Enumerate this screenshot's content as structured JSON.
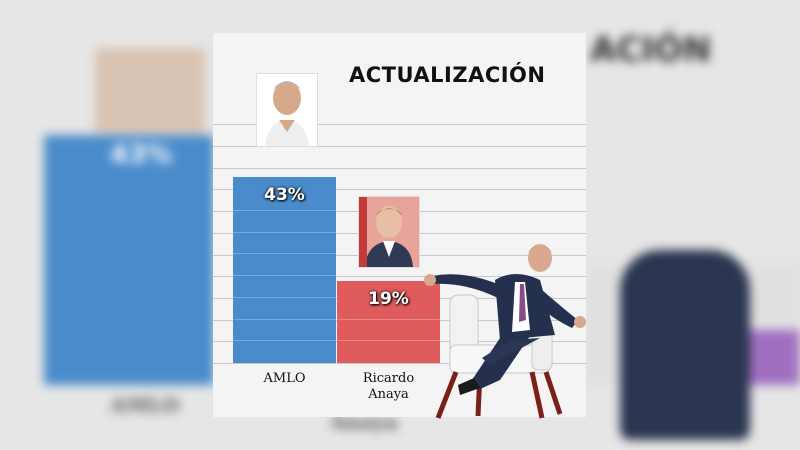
{
  "background": {
    "heading_fragment": "ACIÓN",
    "big_value": "43%",
    "cat_left": "AMLO",
    "cat_right": "Anaya"
  },
  "chart_data": {
    "type": "bar",
    "title": "ACTUALIZACIÓN",
    "categories": [
      "AMLO",
      "Ricardo\nAnaya"
    ],
    "values": [
      43,
      19
    ],
    "value_labels": [
      "43%",
      "19%"
    ],
    "colors": [
      "#4a8ccb",
      "#e05c5c"
    ],
    "ylim": [
      0,
      60
    ],
    "grid": true,
    "xlabel": "",
    "ylabel": ""
  }
}
